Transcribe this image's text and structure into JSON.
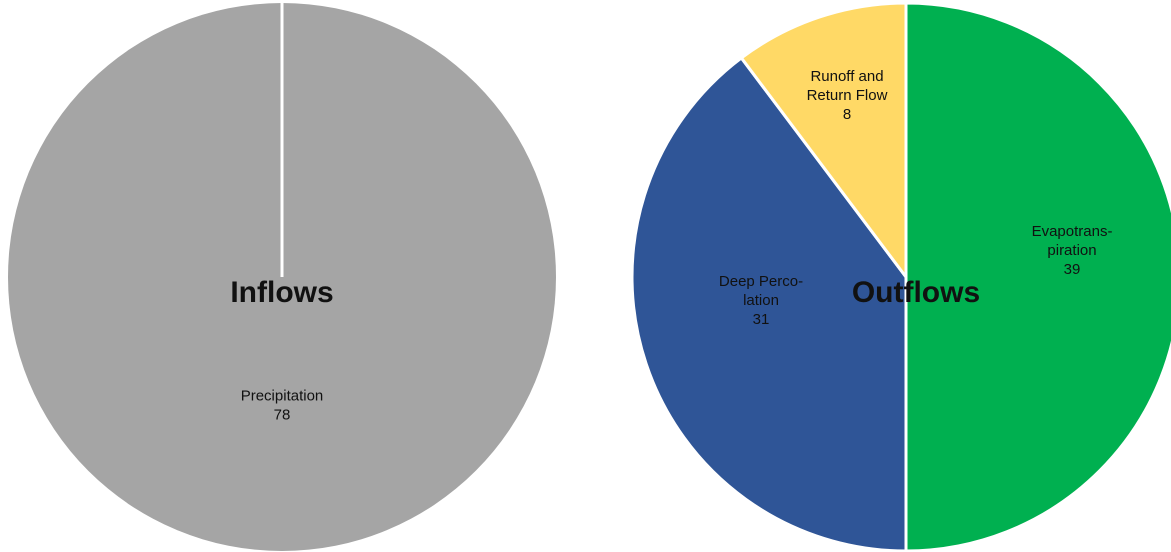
{
  "chart_data": [
    {
      "type": "pie",
      "title": "Inflows",
      "categories": [
        "Precipitation"
      ],
      "values": [
        78
      ],
      "colors": [
        "#a5a5a5"
      ],
      "labels": [
        {
          "lines": [
            "Precipitation"
          ],
          "value": "78"
        }
      ]
    },
    {
      "type": "pie",
      "title": "Outflows",
      "categories": [
        "Evapotranspiration",
        "Deep Percolation",
        "Runoff and Return Flow"
      ],
      "values": [
        39,
        31,
        8
      ],
      "colors": [
        "#00b050",
        "#2f5597",
        "#ffd966"
      ],
      "labels": [
        {
          "lines": [
            "Evapotrans-",
            "piration"
          ],
          "value": "39"
        },
        {
          "lines": [
            "Deep Perco-",
            "lation"
          ],
          "value": "31"
        },
        {
          "lines": [
            "Runoff and",
            "Return Flow"
          ],
          "value": "8"
        }
      ]
    }
  ]
}
